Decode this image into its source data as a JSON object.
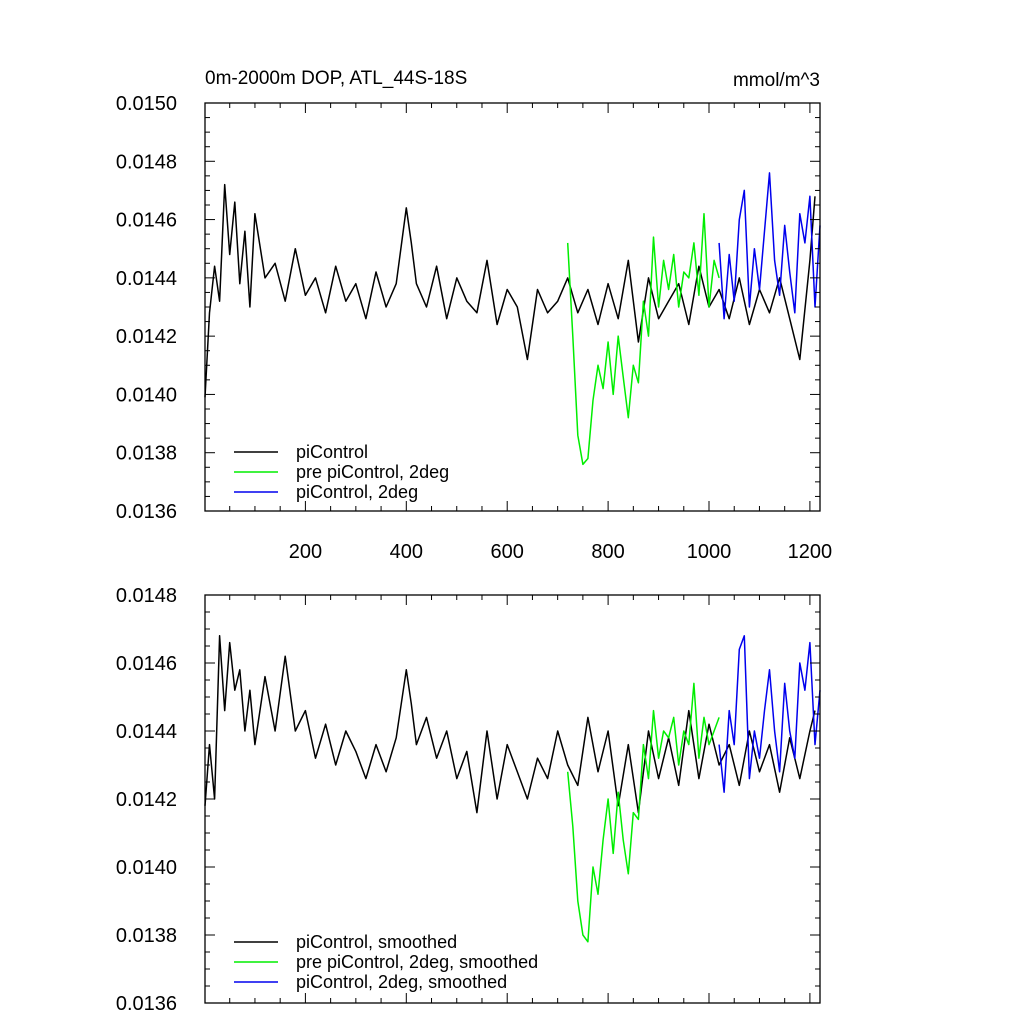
{
  "chart_data": [
    {
      "type": "line",
      "title": "0m-2000m DOP, ATL_44S-18S",
      "units": "mmol/m^3",
      "xlim": [
        1,
        1220
      ],
      "ylim": [
        0.0136,
        0.015
      ],
      "xticks": [
        200,
        400,
        600,
        800,
        1000,
        1200
      ],
      "yticks": [
        "0.0136",
        "0.0138",
        "0.0140",
        "0.0142",
        "0.0144",
        "0.0146",
        "0.0148",
        "0.0150"
      ],
      "grid": false,
      "legend_position": "bottom-left",
      "series": [
        {
          "name": "piControl",
          "color": "#000000",
          "x": [
            1,
            10,
            20,
            30,
            40,
            50,
            60,
            70,
            80,
            90,
            100,
            120,
            140,
            160,
            180,
            200,
            220,
            240,
            260,
            280,
            300,
            320,
            340,
            360,
            380,
            400,
            410,
            420,
            440,
            460,
            480,
            500,
            520,
            540,
            560,
            580,
            600,
            620,
            640,
            660,
            680,
            700,
            720,
            740,
            760,
            780,
            800,
            820,
            840,
            860,
            880,
            900,
            920,
            940,
            960,
            980,
            1000,
            1020,
            1040,
            1060,
            1080,
            1100,
            1120,
            1140,
            1160,
            1180,
            1200,
            1210
          ],
          "y": [
            0.01399,
            0.01428,
            0.01444,
            0.01432,
            0.01472,
            0.01448,
            0.01466,
            0.01438,
            0.01456,
            0.0143,
            0.01462,
            0.0144,
            0.01445,
            0.01432,
            0.0145,
            0.01434,
            0.0144,
            0.01428,
            0.01444,
            0.01432,
            0.01438,
            0.01426,
            0.01442,
            0.0143,
            0.01438,
            0.01464,
            0.01452,
            0.01438,
            0.0143,
            0.01444,
            0.01426,
            0.0144,
            0.01432,
            0.01428,
            0.01446,
            0.01424,
            0.01436,
            0.0143,
            0.01412,
            0.01436,
            0.01428,
            0.01432,
            0.0144,
            0.01428,
            0.01436,
            0.01424,
            0.01438,
            0.01426,
            0.01446,
            0.01418,
            0.0144,
            0.01426,
            0.01432,
            0.01438,
            0.01424,
            0.01444,
            0.0143,
            0.01436,
            0.01426,
            0.0144,
            0.01424,
            0.01436,
            0.01428,
            0.0144,
            0.01426,
            0.01412,
            0.01446,
            0.01468
          ]
        },
        {
          "name": "pre piControl, 2deg",
          "color": "#00ee00",
          "x": [
            720,
            730,
            740,
            750,
            760,
            770,
            780,
            790,
            800,
            810,
            820,
            830,
            840,
            850,
            860,
            870,
            880,
            890,
            900,
            910,
            920,
            930,
            940,
            950,
            960,
            970,
            980,
            990,
            1000,
            1010,
            1020
          ],
          "y": [
            0.01452,
            0.0142,
            0.01386,
            0.01376,
            0.01378,
            0.01398,
            0.0141,
            0.01402,
            0.01418,
            0.014,
            0.0142,
            0.01406,
            0.01392,
            0.0141,
            0.01404,
            0.01432,
            0.0142,
            0.01454,
            0.0143,
            0.01446,
            0.01436,
            0.01448,
            0.0143,
            0.01442,
            0.0144,
            0.01452,
            0.01434,
            0.01462,
            0.0143,
            0.01446,
            0.0144
          ]
        },
        {
          "name": "piControl, 2deg",
          "color": "#0000ee",
          "x": [
            1020,
            1030,
            1040,
            1050,
            1060,
            1070,
            1080,
            1090,
            1100,
            1110,
            1120,
            1130,
            1140,
            1150,
            1160,
            1170,
            1180,
            1190,
            1200,
            1210,
            1220
          ],
          "y": [
            0.01452,
            0.01426,
            0.01448,
            0.01432,
            0.0146,
            0.0147,
            0.0143,
            0.0145,
            0.01436,
            0.01456,
            0.01476,
            0.01446,
            0.01434,
            0.01458,
            0.01442,
            0.01428,
            0.01462,
            0.01452,
            0.01468,
            0.0143,
            0.01458
          ]
        }
      ]
    },
    {
      "type": "line",
      "xlim": [
        1,
        1220
      ],
      "ylim": [
        0.0136,
        0.0148
      ],
      "yticks": [
        "0.0136",
        "0.0138",
        "0.0140",
        "0.0142",
        "0.0144",
        "0.0146",
        "0.0148"
      ],
      "grid": false,
      "legend_position": "bottom-left",
      "series": [
        {
          "name": "piControl, smoothed",
          "color": "#000000",
          "x": [
            1,
            10,
            20,
            30,
            40,
            50,
            60,
            70,
            80,
            90,
            100,
            120,
            140,
            160,
            180,
            200,
            220,
            240,
            260,
            280,
            300,
            320,
            340,
            360,
            380,
            400,
            410,
            420,
            440,
            460,
            480,
            500,
            520,
            540,
            560,
            580,
            600,
            620,
            640,
            660,
            680,
            700,
            720,
            740,
            760,
            780,
            800,
            820,
            840,
            860,
            880,
            900,
            920,
            940,
            960,
            980,
            1000,
            1020,
            1040,
            1060,
            1080,
            1100,
            1120,
            1140,
            1160,
            1180,
            1200,
            1210
          ],
          "y": [
            0.01418,
            0.01436,
            0.0142,
            0.01468,
            0.01446,
            0.01466,
            0.01452,
            0.01458,
            0.0144,
            0.01452,
            0.01436,
            0.01456,
            0.0144,
            0.01462,
            0.0144,
            0.01446,
            0.01432,
            0.01442,
            0.0143,
            0.0144,
            0.01434,
            0.01426,
            0.01436,
            0.01428,
            0.01438,
            0.01458,
            0.01448,
            0.01436,
            0.01444,
            0.01432,
            0.0144,
            0.01426,
            0.01434,
            0.01416,
            0.0144,
            0.0142,
            0.01436,
            0.01428,
            0.0142,
            0.01432,
            0.01426,
            0.0144,
            0.0143,
            0.01424,
            0.01444,
            0.01428,
            0.0144,
            0.01418,
            0.01436,
            0.01416,
            0.0144,
            0.01426,
            0.01438,
            0.01424,
            0.01446,
            0.01426,
            0.01442,
            0.0143,
            0.01436,
            0.01424,
            0.0144,
            0.01428,
            0.01436,
            0.01422,
            0.01438,
            0.01426,
            0.0144,
            0.01446
          ]
        },
        {
          "name": "pre piControl, 2deg, smoothed",
          "color": "#00ee00",
          "x": [
            720,
            730,
            740,
            750,
            760,
            770,
            780,
            790,
            800,
            810,
            820,
            830,
            840,
            850,
            860,
            870,
            880,
            890,
            900,
            910,
            920,
            930,
            940,
            950,
            960,
            970,
            980,
            990,
            1000,
            1010,
            1020
          ],
          "y": [
            0.01428,
            0.01412,
            0.0139,
            0.0138,
            0.01378,
            0.014,
            0.01392,
            0.01408,
            0.0142,
            0.01404,
            0.01422,
            0.01408,
            0.01398,
            0.01416,
            0.01414,
            0.01436,
            0.01426,
            0.01446,
            0.01432,
            0.0144,
            0.01438,
            0.01444,
            0.0143,
            0.0144,
            0.01436,
            0.01454,
            0.01432,
            0.01444,
            0.01436,
            0.0144,
            0.01444
          ]
        },
        {
          "name": "piControl, 2deg, smoothed",
          "color": "#0000ee",
          "x": [
            1020,
            1030,
            1040,
            1050,
            1060,
            1070,
            1080,
            1090,
            1100,
            1110,
            1120,
            1130,
            1140,
            1150,
            1160,
            1170,
            1180,
            1190,
            1200,
            1210,
            1220
          ],
          "y": [
            0.01436,
            0.01422,
            0.01446,
            0.01436,
            0.01464,
            0.01468,
            0.01426,
            0.0144,
            0.01432,
            0.01446,
            0.01458,
            0.0144,
            0.01428,
            0.01454,
            0.0144,
            0.01432,
            0.0146,
            0.01452,
            0.01466,
            0.01436,
            0.01452
          ]
        }
      ]
    }
  ]
}
